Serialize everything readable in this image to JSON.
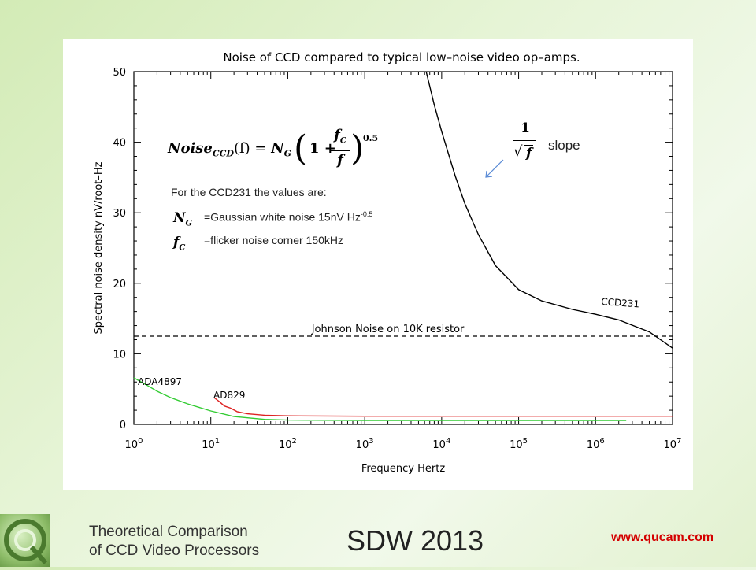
{
  "colors": {
    "ccd_curve": "#000000",
    "ada_curve": "#33cc33",
    "ad829_curve": "#dd2222",
    "johnson_line": "#000000",
    "slide_background": "#e2f1cf",
    "footer_url": "#d40000",
    "arrow": "#5b8bd6"
  },
  "chart_data": {
    "type": "line",
    "title": "Noise of CCD compared to typical low–noise video op–amps.",
    "xlabel": "Frequency Hertz",
    "ylabel": "Spectral noise density nV/root–Hz",
    "x_scale": "log",
    "xlim": [
      1,
      10000000
    ],
    "ylim": [
      0,
      50
    ],
    "x_ticks": [
      {
        "value": 1,
        "base": "10",
        "exp": "0"
      },
      {
        "value": 10,
        "base": "10",
        "exp": "1"
      },
      {
        "value": 100,
        "base": "10",
        "exp": "2"
      },
      {
        "value": 1000,
        "base": "10",
        "exp": "3"
      },
      {
        "value": 10000,
        "base": "10",
        "exp": "4"
      },
      {
        "value": 100000,
        "base": "10",
        "exp": "5"
      },
      {
        "value": 1000000,
        "base": "10",
        "exp": "6"
      },
      {
        "value": 10000000,
        "base": "10",
        "exp": "7"
      }
    ],
    "y_ticks": [
      0,
      10,
      20,
      30,
      40,
      50
    ],
    "grid": false,
    "series": [
      {
        "name": "CCD231",
        "x": [
          6300,
          8000,
          10000,
          15000,
          20000,
          30000,
          50000,
          100000,
          200000,
          500000,
          1000000,
          2000000,
          5000000,
          10000000
        ],
        "y": [
          50,
          45.3,
          41.5,
          35.2,
          31.3,
          26.9,
          22.5,
          19.1,
          17.5,
          16.3,
          15.6,
          14.8,
          13.1,
          10.8
        ]
      },
      {
        "name": "ADA4897",
        "x": [
          1,
          1.5,
          2,
          3,
          5,
          10,
          20,
          50,
          100,
          1000,
          10000,
          100000,
          1000000,
          2500000
        ],
        "y": [
          6.6,
          5.5,
          4.7,
          3.8,
          2.9,
          1.9,
          1.1,
          0.7,
          0.6,
          0.55,
          0.55,
          0.55,
          0.55,
          0.55
        ]
      },
      {
        "name": "AD829",
        "x": [
          11,
          13,
          15,
          18,
          22,
          30,
          50,
          100,
          1000,
          10000,
          100000,
          1000000,
          10000000
        ],
        "y": [
          3.8,
          3.2,
          2.6,
          2.3,
          1.8,
          1.5,
          1.3,
          1.2,
          1.15,
          1.15,
          1.15,
          1.15,
          1.15
        ]
      }
    ],
    "reference_line": {
      "label": "Johnson Noise on 10K resistor",
      "y": 12.5
    },
    "annotations": {
      "ccd_label": "CCD231",
      "ada_label": "ADA4897",
      "ad829_label": "AD829"
    }
  },
  "formula": {
    "lhs_main": "Noise",
    "lhs_sub": "CCD",
    "lhs_arg": "(f) = ",
    "ng_main": "N",
    "ng_sub": "G",
    "one": "1 + ",
    "frac_num": "f",
    "frac_num_sub": "C",
    "frac_den": "f",
    "exponent": "0.5"
  },
  "slope_note": {
    "numerator": "1",
    "denominator": "f",
    "label": "slope"
  },
  "values_note": {
    "heading": "For the CCD231 the values are:",
    "ng_symbol": "N",
    "ng_sub": "G",
    "ng_text": "=Gaussian white noise  15nV Hz",
    "ng_exp": "-0.5",
    "fc_symbol": "f",
    "fc_sub": "C",
    "fc_text": "=flicker noise corner  150kHz"
  },
  "footer": {
    "subtitle": "Theoretical Comparison\nof CCD Video Processors",
    "event": "SDW 2013",
    "url": "www.qucam.com"
  }
}
